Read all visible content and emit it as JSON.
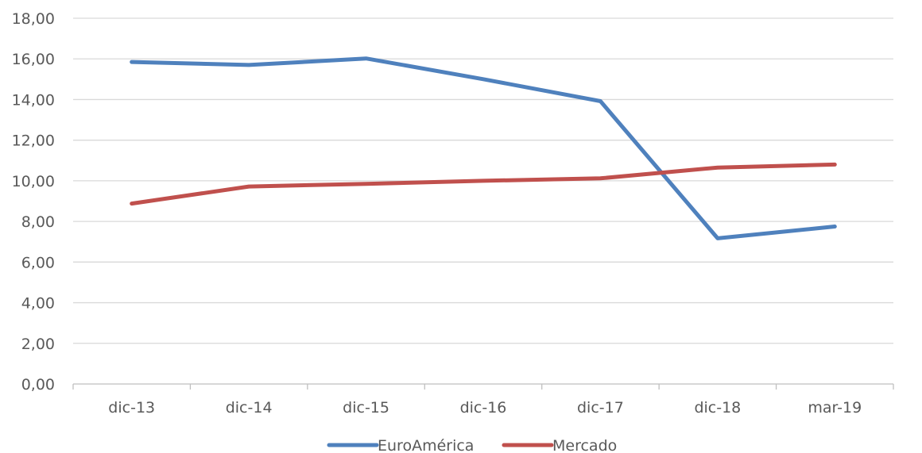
{
  "chart_data": {
    "type": "line",
    "categories": [
      "dic-13",
      "dic-14",
      "dic-15",
      "dic-16",
      "dic-17",
      "dic-18",
      "mar-19"
    ],
    "series": [
      {
        "name": "EuroAmérica",
        "color": "#4f81bd",
        "values": [
          15.85,
          15.7,
          16.02,
          15.0,
          13.92,
          7.17,
          7.75
        ]
      },
      {
        "name": "Mercado",
        "color": "#c0504d",
        "values": [
          8.88,
          9.72,
          9.85,
          10.0,
          10.12,
          10.65,
          10.8
        ]
      }
    ],
    "ylim": [
      0,
      18
    ],
    "y_ticks": [
      "0,00",
      "2,00",
      "4,00",
      "6,00",
      "8,00",
      "10,00",
      "12,00",
      "14,00",
      "16,00",
      "18,00"
    ],
    "grid": true,
    "legend": "bottom-center"
  }
}
